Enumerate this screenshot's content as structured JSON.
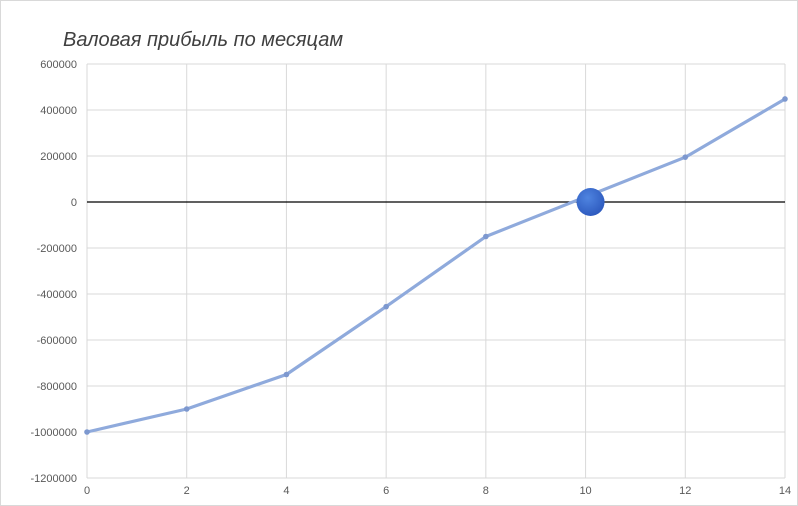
{
  "chart_data": {
    "type": "line",
    "title": "Валовая прибыль по месяцам",
    "xlabel": "",
    "ylabel": "",
    "x": [
      0,
      2,
      4,
      6,
      8,
      12,
      14
    ],
    "series": [
      {
        "values": [
          -1000000,
          -900000,
          -750000,
          -455000,
          -150000,
          195000,
          448000
        ],
        "color": "#8faadc"
      }
    ],
    "highlight_point": {
      "x": 10.1,
      "y": 0,
      "color": "#2e5bbf"
    },
    "xlim": [
      0,
      14
    ],
    "ylim": [
      -1200000,
      600000
    ],
    "x_ticks": [
      0,
      2,
      4,
      6,
      8,
      10,
      12,
      14
    ],
    "y_ticks": [
      600000,
      400000,
      200000,
      0,
      -200000,
      -400000,
      -600000,
      -800000,
      -1000000,
      -1200000
    ],
    "x_tick_labels": [
      "0",
      "2",
      "4",
      "6",
      "8",
      "10",
      "12",
      "14"
    ],
    "y_tick_labels": [
      "600000",
      "400000",
      "200000",
      "0",
      "-200000",
      "-400000",
      "-600000",
      "-800000",
      "-1000000",
      "-1200000"
    ],
    "grid": true,
    "zero_line_color": "#000000",
    "legend": "none"
  }
}
